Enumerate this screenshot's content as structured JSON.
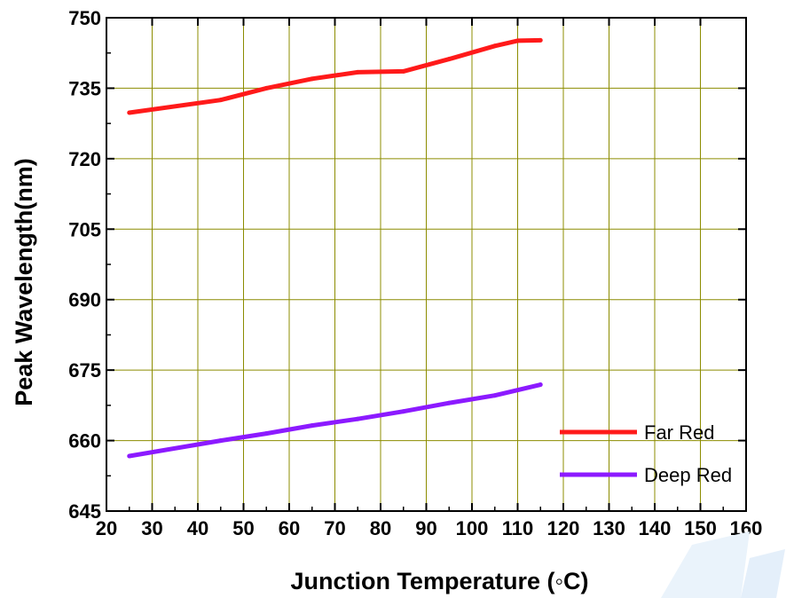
{
  "chart_data": {
    "type": "line",
    "title": "",
    "xlabel": "Junction Temperature (◦C)",
    "ylabel": "Peak Wavelength(nm)",
    "xlim": [
      20,
      160
    ],
    "ylim": [
      645,
      750
    ],
    "xticks": [
      20,
      30,
      40,
      50,
      60,
      70,
      80,
      90,
      100,
      110,
      120,
      130,
      140,
      150,
      160
    ],
    "yticks": [
      645,
      660,
      675,
      690,
      705,
      720,
      735,
      750
    ],
    "grid": true,
    "grid_color": "#8c8c00",
    "legend_position": "bottom-right",
    "series": [
      {
        "name": "Far Red",
        "color": "#ff1a1a",
        "x": [
          25,
          45,
          55,
          65,
          75,
          85,
          95,
          105,
          110,
          115
        ],
        "y": [
          729.8,
          732.5,
          735.0,
          737.0,
          738.4,
          738.6,
          741.2,
          744.0,
          745.1,
          745.2
        ]
      },
      {
        "name": "Deep Red",
        "color": "#8c1aff",
        "x": [
          25,
          45,
          55,
          65,
          75,
          85,
          95,
          105,
          115
        ],
        "y": [
          656.7,
          660.0,
          661.5,
          663.2,
          664.6,
          666.2,
          668.0,
          669.6,
          671.9
        ]
      }
    ]
  }
}
